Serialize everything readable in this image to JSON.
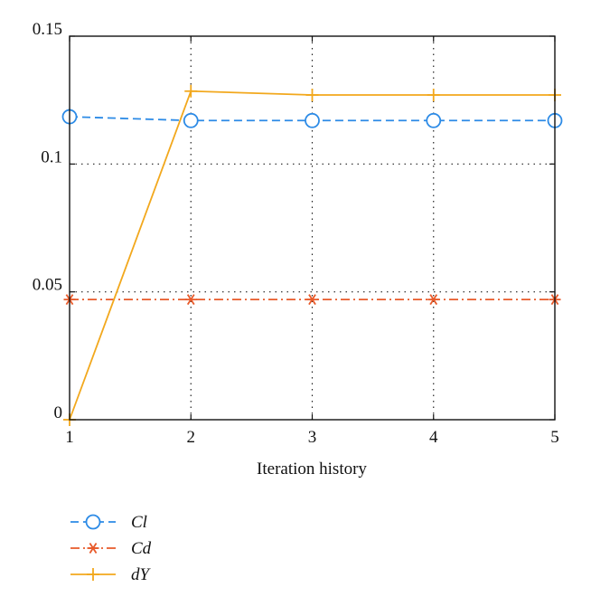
{
  "chart_data": {
    "type": "line",
    "title": "",
    "xlabel": "Iteration history",
    "ylabel": "",
    "x": [
      1,
      2,
      3,
      4,
      5
    ],
    "xlim": [
      1,
      5
    ],
    "ylim": [
      0,
      0.15
    ],
    "xticks": [
      1,
      2,
      3,
      4,
      5
    ],
    "xtick_labels": [
      "1",
      "2",
      "3",
      "4",
      "5"
    ],
    "yticks": [
      0,
      0.05,
      0.1,
      0.15
    ],
    "ytick_labels": [
      "0",
      "0.05",
      "0.1",
      "0.15"
    ],
    "grid": true,
    "legend_position": "bottom-left-outside",
    "series": [
      {
        "name": "Cl",
        "values": [
          0.1185,
          0.117,
          0.117,
          0.117,
          0.117
        ],
        "color": "#2d8be6",
        "line_style": "dashed",
        "marker": "circle"
      },
      {
        "name": "Cd",
        "values": [
          0.047,
          0.047,
          0.047,
          0.047,
          0.047
        ],
        "color": "#e85a2a",
        "line_style": "dash-dot",
        "marker": "asterisk"
      },
      {
        "name": "dY",
        "values": [
          0.0,
          0.1285,
          0.127,
          0.127,
          0.127
        ],
        "color": "#f2a81d",
        "line_style": "solid",
        "marker": "plus"
      }
    ]
  }
}
